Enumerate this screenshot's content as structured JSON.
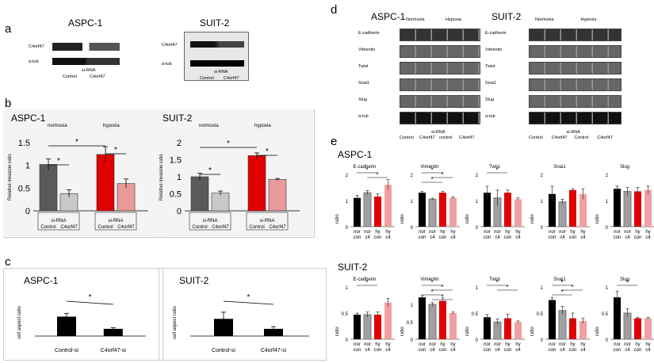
{
  "panels": {
    "a": {
      "letter": "a",
      "left": {
        "title": "ASPC-1",
        "protein": "C4orf47",
        "loading": "α-tub",
        "sirna": "si-RNA",
        "lanes": [
          "Control",
          "C4orf47"
        ]
      },
      "right": {
        "title": "SUIT-2",
        "protein": "C4orf47",
        "loading": "α-tub",
        "sirna": "si-RNA",
        "lanes": [
          "Control",
          "C4orf47"
        ]
      }
    },
    "b": {
      "letter": "b"
    },
    "c": {
      "letter": "c"
    },
    "d": {
      "letter": "d",
      "left": {
        "title": "ASPC-1",
        "conditions": [
          "Normoxia",
          "Hypoxia"
        ],
        "rows": [
          "E-cadherin",
          "Vimentin",
          "Twist",
          "Snai1",
          "Slug",
          "α-tub"
        ],
        "sirna": "si-RNA",
        "lanes": [
          "Control",
          "C4orf47",
          "control",
          "C4orf47"
        ]
      },
      "right": {
        "title": "SUIT-2",
        "conditions": [
          "Normoxia",
          "Hypoxia"
        ],
        "rows": [
          "E-cadherin",
          "Vimentin",
          "Twist",
          "Snai1",
          "Slug",
          "α-tub"
        ],
        "sirna": "si-RNA",
        "lanes": [
          "Control",
          "C4orf47",
          "Control",
          "C4orf47"
        ]
      }
    },
    "e": {
      "letter": "e",
      "aspc_title": "ASPC-1",
      "suit_title": "SUIT-2"
    }
  },
  "chart_data": [
    {
      "id": "b-aspc1",
      "type": "bar",
      "title": "ASPC-1",
      "ylabel": "Relative invasion ratio",
      "ylim": [
        0,
        1.5
      ],
      "yticks": [
        "0",
        "0.5",
        "1",
        "1.5"
      ],
      "groups": [
        "normoxia",
        "hypoxia"
      ],
      "categories": [
        "Control",
        "C4orf47",
        "Control",
        "C4orf47"
      ],
      "category_prefix": "si-RNA",
      "values": [
        1.02,
        0.38,
        1.24,
        0.6
      ],
      "errors": [
        0.12,
        0.08,
        0.17,
        0.1
      ],
      "colors": [
        "#5a5a5a",
        "#c8c8c8",
        "#e00000",
        "#e89a9a"
      ],
      "significance": [
        "*",
        "*",
        "*"
      ]
    },
    {
      "id": "b-suit2",
      "type": "bar",
      "title": "SUIT-2",
      "ylabel": "Relative invasion ratio",
      "ylim": [
        0,
        2
      ],
      "yticks": [
        "0",
        "0.5",
        "1",
        "1.5",
        "2"
      ],
      "groups": [
        "normoxia",
        "hypoxia"
      ],
      "categories": [
        "Control",
        "C4orf47",
        "Control",
        "C4orf47"
      ],
      "category_prefix": "si-RNA",
      "values": [
        1.0,
        0.52,
        1.62,
        0.92
      ],
      "errors": [
        0.1,
        0.06,
        0.08,
        0.03
      ],
      "colors": [
        "#5a5a5a",
        "#c8c8c8",
        "#e00000",
        "#e89a9a"
      ],
      "significance": [
        "*",
        "*",
        "*"
      ]
    },
    {
      "id": "c-aspc1",
      "type": "bar",
      "title": "ASPC-1",
      "ylabel": "cell aspect ratio",
      "categories": [
        "Control-si",
        "C4orf47-si"
      ],
      "values": [
        3.5,
        1.3
      ],
      "errors": [
        0.6,
        0.2
      ],
      "ylim": [
        0,
        6
      ],
      "colors": [
        "#000000",
        "#000000"
      ],
      "significance": [
        "*"
      ]
    },
    {
      "id": "c-suit2",
      "type": "bar",
      "title": "SUIT-2",
      "ylabel": "cell aspect ratio",
      "categories": [
        "Control-si",
        "C4orf47-si"
      ],
      "values": [
        3.1,
        1.3
      ],
      "errors": [
        1.2,
        0.4
      ],
      "ylim": [
        0,
        6
      ],
      "colors": [
        "#000000",
        "#000000"
      ],
      "significance": [
        "*"
      ]
    },
    {
      "id": "e-aspc1-ecad",
      "type": "bar",
      "title": "E-cadherin",
      "ylabel": "ratio",
      "ylim": [
        0,
        2
      ],
      "yticks": [
        "0",
        "1",
        "2"
      ],
      "categories": [
        "nor con",
        "nor c4",
        "hy con",
        "hy c4"
      ],
      "values": [
        1.1,
        1.3,
        1.15,
        1.6
      ],
      "errors": [
        0.1,
        0.08,
        0.1,
        0.2
      ],
      "significance": [
        "*",
        "*"
      ]
    },
    {
      "id": "e-aspc1-vim",
      "type": "bar",
      "title": "Vimentin",
      "ylabel": "ratio",
      "ylim": [
        0,
        2
      ],
      "yticks": [
        "0",
        "1",
        "2"
      ],
      "categories": [
        "nor con",
        "nor c4",
        "hy con",
        "hy c4"
      ],
      "values": [
        1.3,
        1.05,
        1.3,
        1.1
      ],
      "errors": [
        0.05,
        0.04,
        0.05,
        0.04
      ],
      "significance": [
        "*",
        "*",
        "*"
      ]
    },
    {
      "id": "e-aspc1-twist",
      "type": "bar",
      "title": "Twist",
      "ylabel": "ratio",
      "ylim": [
        0,
        2
      ],
      "yticks": [
        "0",
        "1",
        "2"
      ],
      "categories": [
        "nor con",
        "nor c4",
        "hy con",
        "hy c4"
      ],
      "values": [
        1.3,
        1.1,
        1.3,
        1.05
      ],
      "errors": [
        0.25,
        0.3,
        0.1,
        0.05
      ],
      "significance": [
        "*"
      ]
    },
    {
      "id": "e-aspc1-snai1",
      "type": "bar",
      "title": "Snai1",
      "ylabel": "ratio",
      "ylim": [
        0,
        2
      ],
      "yticks": [
        "0",
        "1",
        "2"
      ],
      "categories": [
        "nor con",
        "nor c4",
        "hy con",
        "hy c4"
      ],
      "values": [
        1.25,
        0.95,
        1.4,
        1.25
      ],
      "errors": [
        0.3,
        0.1,
        0.05,
        0.2
      ],
      "significance": []
    },
    {
      "id": "e-aspc1-slug",
      "type": "bar",
      "title": "Slug",
      "ylabel": "ratio",
      "ylim": [
        0,
        2
      ],
      "yticks": [
        "0",
        "1",
        "2"
      ],
      "categories": [
        "nor con",
        "nor c4",
        "hy con",
        "hy c4"
      ],
      "values": [
        1.45,
        1.35,
        1.35,
        1.4
      ],
      "errors": [
        0.1,
        0.15,
        0.15,
        0.15
      ],
      "significance": []
    },
    {
      "id": "e-suit2-ecad",
      "type": "bar",
      "title": "E-cadherin",
      "ylabel": "ratio",
      "ylim": [
        0,
        1
      ],
      "yticks": [
        "0",
        "0.5",
        "1"
      ],
      "categories": [
        "nor con",
        "nor c4",
        "hy con",
        "hy c4"
      ],
      "values": [
        0.47,
        0.47,
        0.47,
        0.7
      ],
      "errors": [
        0.03,
        0.05,
        0.05,
        0.08
      ],
      "significance": [
        "*"
      ]
    },
    {
      "id": "e-suit2-vim",
      "type": "bar",
      "title": "Vimentin",
      "ylabel": "ratio",
      "ylim": [
        0,
        1.5
      ],
      "yticks": [
        "0",
        "0.5",
        "1"
      ],
      "categories": [
        "nor con",
        "nor c4",
        "hy con",
        "hy c4"
      ],
      "values": [
        1.2,
        1.0,
        1.1,
        0.75
      ],
      "errors": [
        0.05,
        0.05,
        0.1,
        0.03
      ],
      "significance": [
        "*",
        "*",
        "*",
        "*"
      ]
    },
    {
      "id": "e-suit2-twist",
      "type": "bar",
      "title": "Twist",
      "ylabel": "ratio",
      "ylim": [
        0,
        1
      ],
      "yticks": [
        "0",
        "0.5",
        "1"
      ],
      "categories": [
        "nor con",
        "nor c4",
        "hy con",
        "hy c4"
      ],
      "values": [
        0.42,
        0.33,
        0.4,
        0.33
      ],
      "errors": [
        0.05,
        0.06,
        0.08,
        0.02
      ],
      "significance": [
        "*",
        "*"
      ]
    },
    {
      "id": "e-suit2-snai1",
      "type": "bar",
      "title": "Snai1",
      "ylabel": "ratio",
      "ylim": [
        0,
        1
      ],
      "yticks": [
        "0",
        "0.5",
        "1"
      ],
      "categories": [
        "nor con",
        "nor c4",
        "hy con",
        "hy c4"
      ],
      "values": [
        0.75,
        0.55,
        0.4,
        0.35
      ],
      "errors": [
        0.05,
        0.08,
        0.1,
        0.05
      ],
      "significance": [
        "*",
        "*",
        "*"
      ]
    },
    {
      "id": "e-suit2-slug",
      "type": "bar",
      "title": "Slug",
      "ylabel": "ratio",
      "ylim": [
        0,
        1
      ],
      "yticks": [
        "0",
        "0.5",
        "1"
      ],
      "categories": [
        "nor con",
        "nor c4",
        "hy con",
        "hy c4"
      ],
      "values": [
        0.8,
        0.5,
        0.4,
        0.4
      ],
      "errors": [
        0.12,
        0.08,
        0.02,
        0.02
      ],
      "significance": [
        "*"
      ]
    }
  ],
  "colors": {
    "nor_con": "#000000",
    "nor_c4": "#a0a0a0",
    "hy_con": "#e00000",
    "hy_c4": "#f0a0a0"
  }
}
